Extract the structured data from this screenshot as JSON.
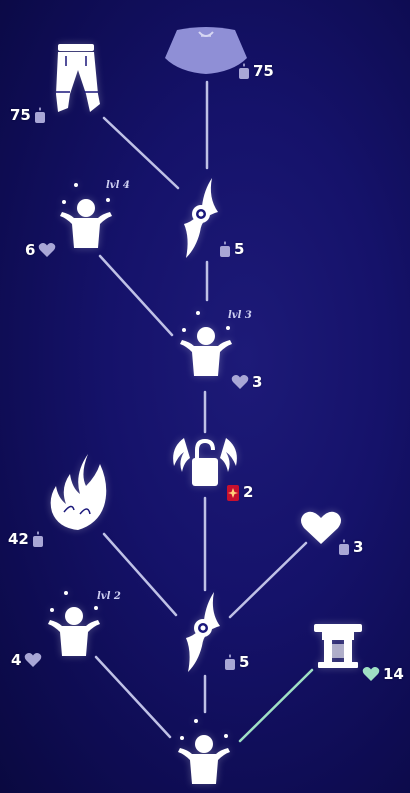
{
  "colors": {
    "background": "#15126a",
    "line": "#bfc1e6",
    "line_active": "#9fe0c4",
    "heart": "#a9a7d6",
    "heart_special": "#9fe0c4",
    "icon": "#ffffff",
    "cape_icon": "#8f8fd6",
    "ascended_candle": "#c8102e"
  },
  "nodes": {
    "cape": {
      "icon": "cape-icon",
      "cost": "75",
      "currency": "candle"
    },
    "pants": {
      "icon": "pants-icon",
      "cost": "75",
      "currency": "candle"
    },
    "emote_lvl4": {
      "icon": "juggle-emote-icon",
      "level": "lvl 4",
      "cost": "6",
      "currency": "heart"
    },
    "wing_buff_top": {
      "icon": "wing-buff-icon",
      "cost": "5",
      "currency": "candle"
    },
    "emote_lvl3": {
      "icon": "juggle-emote-icon",
      "level": "lvl 3",
      "cost": "3",
      "currency": "heart"
    },
    "locked_node": {
      "icon": "locked-wings-icon",
      "cost": "2",
      "currency": "ascended-candle"
    },
    "fire_prop": {
      "icon": "flame-icon",
      "cost": "42",
      "currency": "candle"
    },
    "heart_node": {
      "icon": "heart-icon",
      "cost": "3",
      "currency": "candle"
    },
    "emote_lvl2": {
      "icon": "juggle-emote-icon",
      "level": "lvl 2",
      "cost": "4",
      "currency": "heart"
    },
    "wing_buff_bottom": {
      "icon": "wing-buff-icon",
      "cost": "5",
      "currency": "candle"
    },
    "shrine_prop": {
      "icon": "shrine-icon",
      "cost": "14",
      "currency": "heart"
    },
    "emote_lvl1": {
      "icon": "juggle-emote-icon"
    }
  }
}
